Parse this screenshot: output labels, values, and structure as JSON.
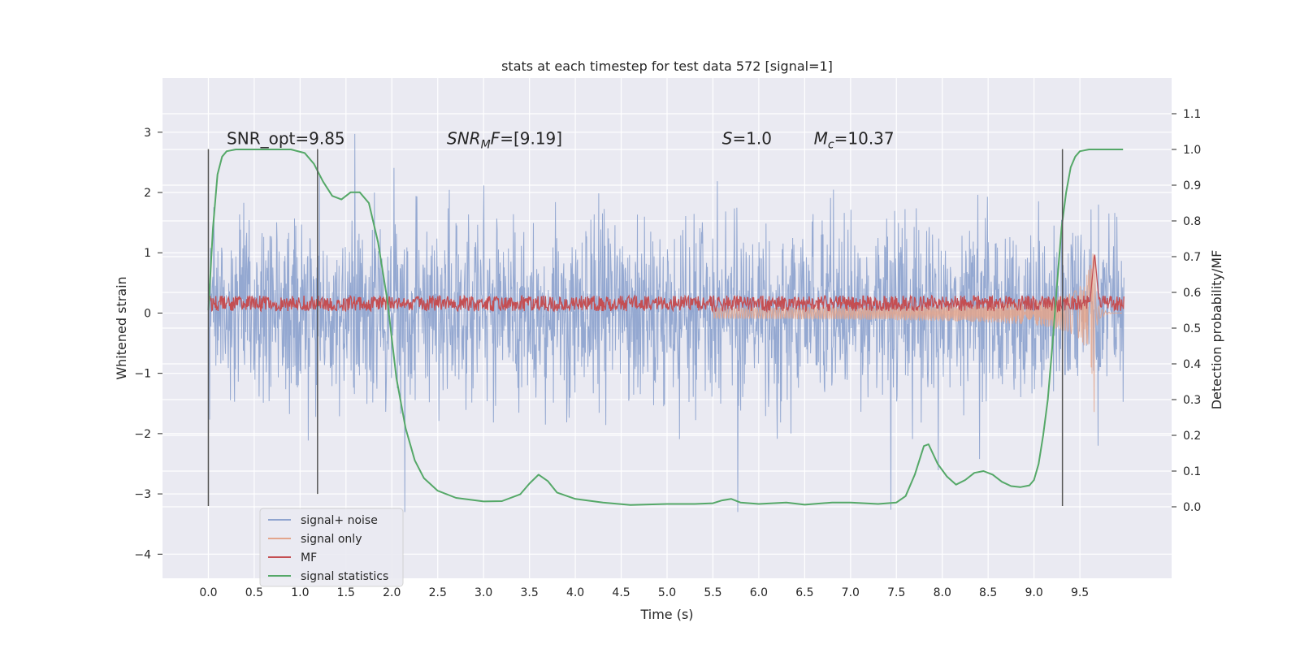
{
  "chart_data": {
    "type": "line",
    "title": "stats at each timestep for test data 572 [signal=1]",
    "xlabel": "Time (s)",
    "ylabel": "Whitened strain",
    "y2label": "Detection probability/MF",
    "xlim": [
      -0.5,
      10.5
    ],
    "ylim": [
      -4.4,
      3.9
    ],
    "y2lim": [
      -0.2,
      1.2
    ],
    "xticks": [
      "0.0",
      "0.5",
      "1.0",
      "1.5",
      "2.0",
      "2.5",
      "3.0",
      "3.5",
      "4.0",
      "4.5",
      "5.0",
      "5.5",
      "6.0",
      "6.5",
      "7.0",
      "7.5",
      "8.0",
      "8.5",
      "9.0",
      "9.5"
    ],
    "yticks": [
      "3",
      "2",
      "1",
      "0",
      "−1",
      "−2",
      "−3",
      "−4"
    ],
    "y2ticks": [
      "1.1",
      "1.0",
      "0.9",
      "0.8",
      "0.7",
      "0.6",
      "0.5",
      "0.4",
      "0.3",
      "0.2",
      "0.1",
      "0.0"
    ],
    "grid": true,
    "legend_position": "lower-left",
    "colors": {
      "signal_noise": "#8fa4cf",
      "signal_only": "#e3a58c",
      "mf": "#c44e52",
      "signal_statistics": "#55a868",
      "vlines": "#555555",
      "background": "#eaeaf2"
    },
    "annotations": [
      {
        "text": "SNR_opt=9.85",
        "x": 0.2,
        "y": 2.8
      },
      {
        "text": "SNR_MF=[9.19]",
        "x": 2.6,
        "y": 2.8
      },
      {
        "text": "S=1.0",
        "x": 5.6,
        "y": 2.8
      },
      {
        "text": "M_c=10.37",
        "x": 6.6,
        "y": 2.8
      }
    ],
    "vertical_lines": [
      {
        "x": 0.0,
        "y": [
          -3.2,
          2.72
        ]
      },
      {
        "x": 1.19,
        "y": [
          -3.0,
          2.72
        ]
      },
      {
        "x": 9.31,
        "y": [
          -3.2,
          2.72
        ]
      }
    ],
    "series": [
      {
        "name": "signal+ noise",
        "kind": "noise",
        "x_range": [
          0.0,
          9.98
        ],
        "envelope_y": [
          -1.6,
          1.5
        ],
        "spike_y": [
          -3.3,
          3.55
        ]
      },
      {
        "name": "signal only",
        "kind": "chirp",
        "x_range": [
          5.5,
          9.66
        ],
        "amp_y": [
          0.05,
          1.7
        ],
        "merger_x": 9.66
      },
      {
        "name": "MF",
        "kind": "mf",
        "x_range": [
          0.0,
          9.98
        ],
        "base_y": [
          0.0,
          0.35
        ],
        "peak": {
          "x": 9.66,
          "y": 1.0
        }
      },
      {
        "name": "signal statistics",
        "kind": "line",
        "axis": "y2",
        "x": [
          0.0,
          0.05,
          0.1,
          0.15,
          0.2,
          0.3,
          0.5,
          0.7,
          0.9,
          1.05,
          1.15,
          1.25,
          1.35,
          1.45,
          1.55,
          1.65,
          1.75,
          1.85,
          1.95,
          2.05,
          2.15,
          2.25,
          2.35,
          2.5,
          2.7,
          3.0,
          3.2,
          3.4,
          3.5,
          3.6,
          3.7,
          3.8,
          4.0,
          4.3,
          4.6,
          5.0,
          5.3,
          5.5,
          5.6,
          5.7,
          5.8,
          6.0,
          6.3,
          6.5,
          6.8,
          7.0,
          7.3,
          7.5,
          7.6,
          7.7,
          7.8,
          7.85,
          7.95,
          8.05,
          8.15,
          8.25,
          8.35,
          8.45,
          8.55,
          8.65,
          8.75,
          8.85,
          8.95,
          9.0,
          9.05,
          9.1,
          9.15,
          9.2,
          9.25,
          9.3,
          9.35,
          9.4,
          9.45,
          9.5,
          9.6,
          9.7,
          9.8,
          9.9,
          9.97
        ],
        "y": [
          0.55,
          0.78,
          0.93,
          0.98,
          0.995,
          1.0,
          1.0,
          1.0,
          1.0,
          0.99,
          0.96,
          0.91,
          0.87,
          0.86,
          0.88,
          0.88,
          0.85,
          0.74,
          0.58,
          0.36,
          0.22,
          0.13,
          0.08,
          0.045,
          0.025,
          0.015,
          0.016,
          0.035,
          0.065,
          0.09,
          0.072,
          0.04,
          0.022,
          0.012,
          0.005,
          0.008,
          0.008,
          0.01,
          0.018,
          0.022,
          0.012,
          0.008,
          0.012,
          0.006,
          0.012,
          0.012,
          0.008,
          0.012,
          0.03,
          0.09,
          0.17,
          0.175,
          0.12,
          0.085,
          0.062,
          0.075,
          0.095,
          0.1,
          0.09,
          0.07,
          0.058,
          0.055,
          0.06,
          0.075,
          0.12,
          0.2,
          0.3,
          0.45,
          0.62,
          0.78,
          0.88,
          0.95,
          0.98,
          0.995,
          1.0,
          1.0,
          1.0,
          1.0,
          1.0
        ]
      }
    ]
  }
}
